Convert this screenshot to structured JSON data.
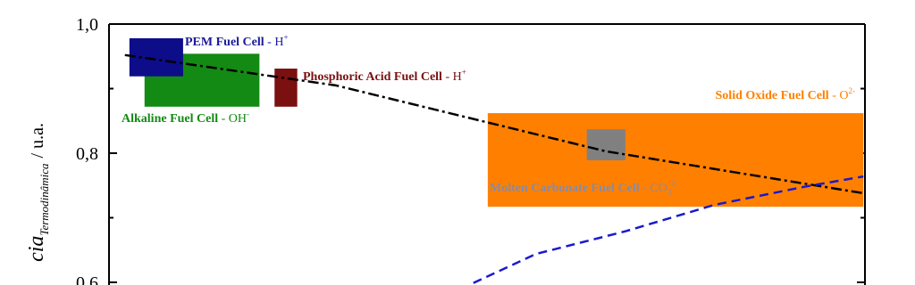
{
  "chart_data": {
    "type": "range-box",
    "ylabel": {
      "main": "cia",
      "sub": "Termodinâmica",
      "unit": "/ u.a."
    },
    "xlim": [
      0,
      1000
    ],
    "ylim": [
      0.6,
      1.0
    ],
    "yticks": [
      {
        "value": 1.0,
        "label": "1,0"
      },
      {
        "value": 0.8,
        "label": "0,8"
      },
      {
        "value": 0.6,
        "label": "0,6"
      }
    ],
    "yminor": [
      0.9,
      0.7
    ],
    "boxes": [
      {
        "name": "Solid Oxide Fuel Cell",
        "ion": "O",
        "charge": "2-",
        "color": "#ff8000",
        "label_color": "#ff8000",
        "x": [
          501,
          998
        ],
        "y": [
          0.717,
          0.862
        ]
      },
      {
        "name": "Molten Carbonate Fuel Cell",
        "ion": "CO",
        "ion_sub": "3",
        "charge": "2-",
        "color": "#808080",
        "label_color": "#8a8aa0",
        "x": [
          632,
          683
        ],
        "y": [
          0.789,
          0.837
        ]
      },
      {
        "name": "Alkaline Fuel Cell",
        "ion": "OH",
        "charge": "-",
        "color": "#138a13",
        "label_color": "#138a13",
        "x": [
          47,
          199
        ],
        "y": [
          0.872,
          0.954
        ]
      },
      {
        "name": "PEM Fuel Cell",
        "ion": "H",
        "charge": "+",
        "color": "#0d0d8a",
        "label_color": "#1a1a99",
        "x": [
          27,
          98
        ],
        "y": [
          0.919,
          0.978
        ]
      },
      {
        "name": "Phosphoric Acid Fuel Cell",
        "ion": "H",
        "charge": "+",
        "color": "#7a1010",
        "label_color": "#7a1010",
        "x": [
          219,
          249
        ],
        "y": [
          0.872,
          0.931
        ]
      }
    ],
    "lines": [
      {
        "color": "#000000",
        "style": "dash-dot",
        "x": [
          21,
          300,
          657,
          998
        ],
        "values": [
          0.952,
          0.905,
          0.803,
          0.738
        ]
      },
      {
        "color": "#1a1acc",
        "style": "dash",
        "x": [
          482,
          565,
          683,
          801,
          920,
          998
        ],
        "values": [
          0.599,
          0.644,
          0.679,
          0.72,
          0.748,
          0.764
        ]
      }
    ]
  }
}
